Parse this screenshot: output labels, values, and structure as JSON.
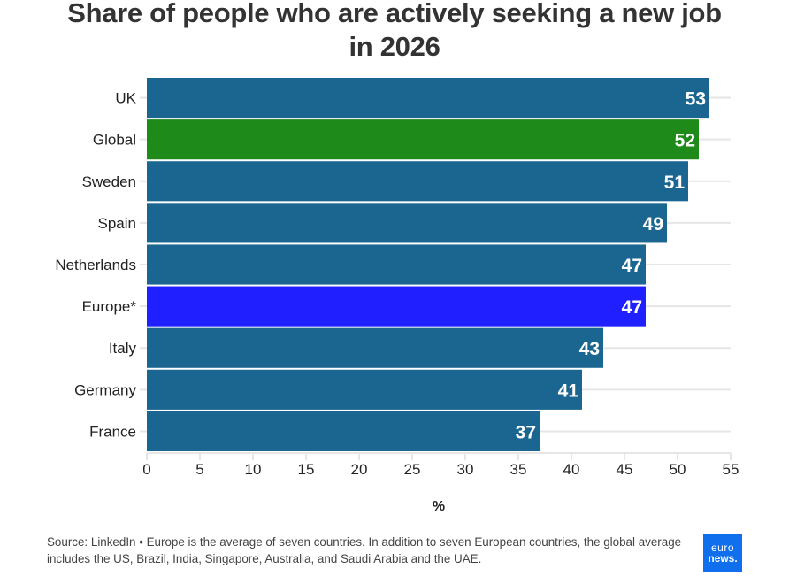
{
  "chart_data": {
    "type": "bar",
    "orientation": "horizontal",
    "title": "Share of people who are actively seeking a new job in 2026",
    "title_lines": [
      "Share of people who are actively seeking a new job",
      "in 2026"
    ],
    "categories": [
      "UK",
      "Global",
      "Sweden",
      "Spain",
      "Netherlands",
      "Europe*",
      "Italy",
      "Germany",
      "France"
    ],
    "values": [
      53,
      52,
      51,
      49,
      47,
      47,
      43,
      41,
      37
    ],
    "data_labels": [
      "53",
      "52",
      "51",
      "49",
      "47",
      "47",
      "43",
      "41",
      "37"
    ],
    "colors": [
      "#1b6690",
      "#1e8a1a",
      "#1b6690",
      "#1b6690",
      "#1b6690",
      "#1f1fff",
      "#1b6690",
      "#1b6690",
      "#1b6690"
    ],
    "xlabel": "%",
    "ylabel": "",
    "xlim": [
      0,
      55
    ],
    "xticks": [
      0,
      5,
      10,
      15,
      20,
      25,
      30,
      35,
      40,
      45,
      50,
      55
    ],
    "xtick_labels": [
      "0",
      "5",
      "10",
      "15",
      "20",
      "25",
      "30",
      "35",
      "40",
      "45",
      "50",
      "55"
    ],
    "grid": "horizontal category lines",
    "legend": "none"
  },
  "footer": {
    "source": "Source: LinkedIn • Europe is the average of seven countries. In addition to seven European countries, the global average includes the US, Brazil, India, Singapore, Australia, and Saudi Arabia and the UAE."
  },
  "logo": {
    "line1": "euro",
    "line2": "news."
  }
}
